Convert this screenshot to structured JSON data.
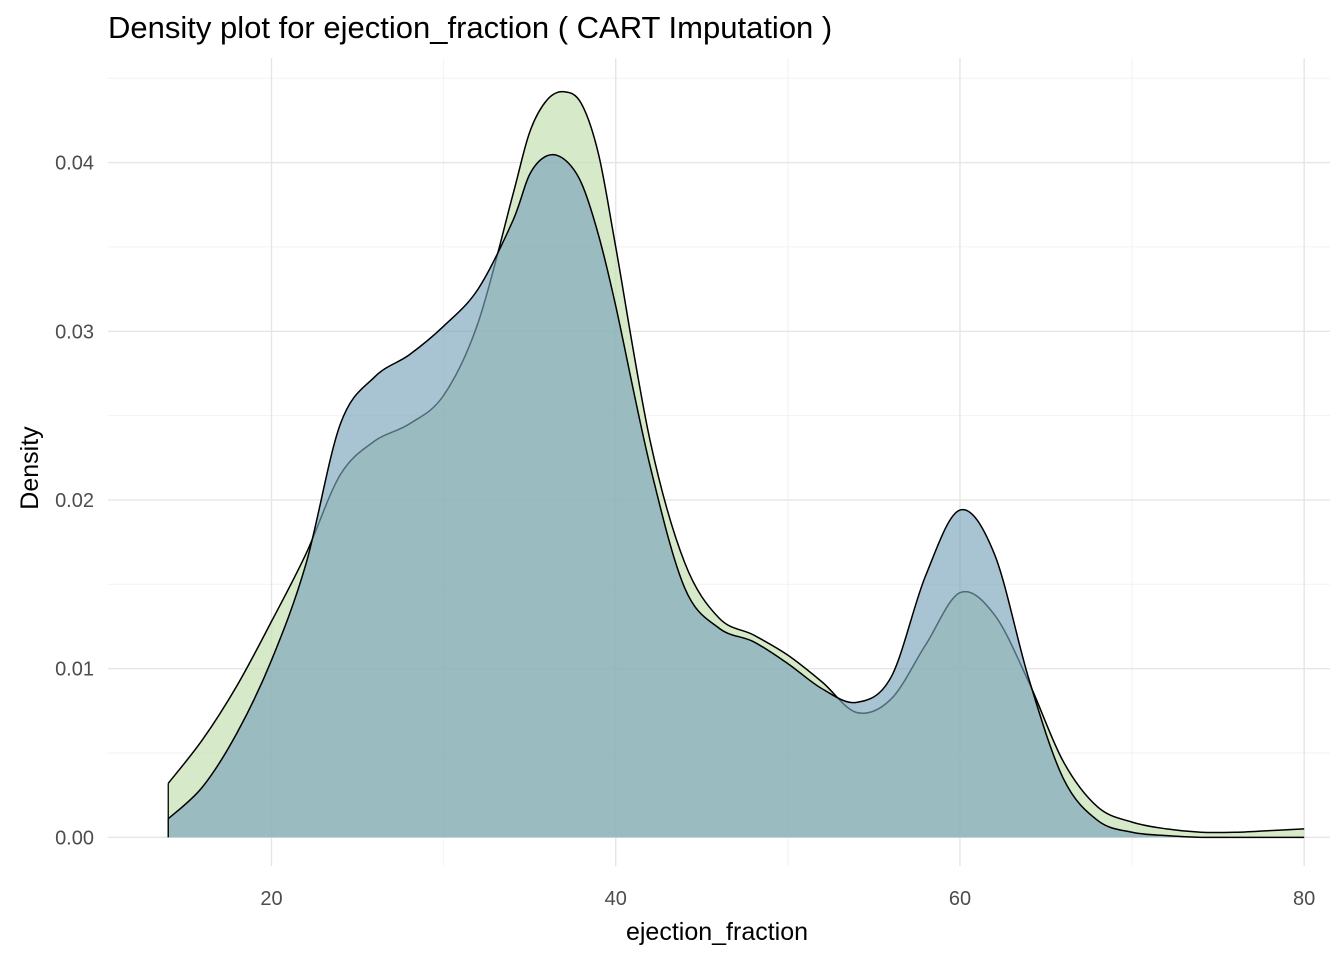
{
  "chart_data": {
    "type": "area",
    "title": "Density plot for ejection_fraction ( CART Imputation )",
    "xlabel": "ejection_fraction",
    "ylabel": "Density",
    "xlim": [
      10.5,
      81.5
    ],
    "ylim": [
      -0.0017,
      0.0462
    ],
    "x_ticks": [
      20,
      40,
      60,
      80
    ],
    "y_ticks": [
      0.0,
      0.01,
      0.02,
      0.03,
      0.04
    ],
    "y_tick_labels": [
      "0.00",
      "0.01",
      "0.02",
      "0.03",
      "0.04"
    ],
    "grid": true,
    "legend": "none",
    "series": [
      {
        "color": "#c5e0b0",
        "opacity": 0.7,
        "x": [
          14,
          16,
          18,
          20,
          22,
          24,
          26,
          28,
          30,
          32,
          34,
          35,
          36,
          37,
          38,
          39,
          40,
          42,
          44,
          46,
          48,
          50,
          52,
          54,
          56,
          58,
          60,
          62,
          64,
          66,
          68,
          70,
          72,
          74,
          76,
          78,
          80
        ],
        "y": [
          0.0032,
          0.0058,
          0.009,
          0.0128,
          0.0168,
          0.0215,
          0.0235,
          0.0245,
          0.0262,
          0.0305,
          0.038,
          0.0418,
          0.0437,
          0.0442,
          0.0435,
          0.0405,
          0.035,
          0.0235,
          0.0163,
          0.013,
          0.012,
          0.0108,
          0.0092,
          0.0074,
          0.0082,
          0.0114,
          0.0145,
          0.0132,
          0.0092,
          0.0045,
          0.0018,
          0.0009,
          0.0005,
          0.0003,
          0.0003,
          0.0004,
          0.0005
        ]
      },
      {
        "color": "#7aa3ba",
        "opacity": 0.65,
        "x": [
          14,
          16,
          18,
          20,
          22,
          24,
          26,
          28,
          30,
          32,
          34,
          35,
          36,
          37,
          38,
          39,
          40,
          42,
          44,
          46,
          48,
          50,
          52,
          54,
          56,
          58,
          60,
          62,
          64,
          66,
          68,
          70,
          72,
          74,
          76,
          78,
          80
        ],
        "y": [
          0.0011,
          0.003,
          0.0062,
          0.0105,
          0.0162,
          0.0245,
          0.0273,
          0.0286,
          0.0303,
          0.0325,
          0.0365,
          0.0393,
          0.0404,
          0.0402,
          0.0388,
          0.0357,
          0.0315,
          0.022,
          0.0148,
          0.0124,
          0.0116,
          0.0103,
          0.0088,
          0.008,
          0.0095,
          0.0155,
          0.0194,
          0.0168,
          0.0094,
          0.0035,
          0.001,
          0.0003,
          0.0001,
          0.0,
          0.0,
          0.0,
          0.0
        ]
      }
    ]
  }
}
